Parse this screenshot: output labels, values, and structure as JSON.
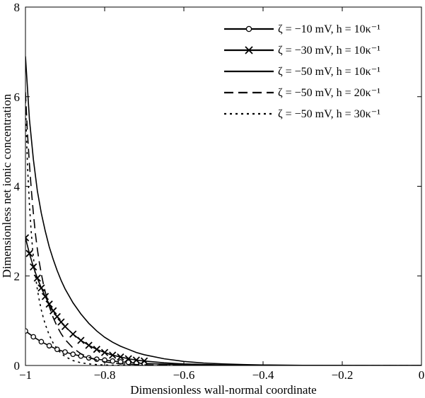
{
  "chart_data": {
    "type": "line",
    "xlabel": "Dimensionless wall-normal coordinate",
    "ylabel": "Dimensionless net ionic concentration",
    "xlim": [
      -1,
      0
    ],
    "ylim": [
      0,
      8
    ],
    "xticks": [
      -1,
      -0.8,
      -0.6,
      -0.4,
      -0.2,
      0
    ],
    "xtick_labels": [
      "−1",
      "−0.8",
      "−0.6",
      "−0.4",
      "−0.2",
      "0"
    ],
    "yticks": [
      0,
      2,
      4,
      6,
      8
    ],
    "ytick_labels": [
      "0",
      "2",
      "4",
      "6",
      "8"
    ],
    "grid": false,
    "legend_position": "top-right",
    "series": [
      {
        "name": "ζ = −10 mV, h = 10κ⁻¹",
        "style": "solid",
        "marker": "circle",
        "color": "#000000",
        "x": [
          -1.0,
          -0.98,
          -0.96,
          -0.94,
          -0.92,
          -0.9,
          -0.88,
          -0.86,
          -0.84,
          -0.82,
          -0.8,
          -0.78,
          -0.76,
          -0.74,
          -0.72,
          -0.7,
          -0.65,
          -0.6,
          -0.5,
          -0.4,
          -0.3,
          -0.2,
          -0.1,
          0.0
        ],
        "y": [
          0.77,
          0.64,
          0.53,
          0.44,
          0.36,
          0.3,
          0.25,
          0.21,
          0.17,
          0.14,
          0.12,
          0.1,
          0.08,
          0.07,
          0.055,
          0.045,
          0.03,
          0.02,
          0.008,
          0.003,
          0.001,
          0.0,
          0.0,
          0.0
        ]
      },
      {
        "name": "ζ = −30 mV, h = 10κ⁻¹",
        "style": "solid",
        "marker": "x",
        "color": "#000000",
        "x": [
          -1.0,
          -0.99,
          -0.98,
          -0.97,
          -0.96,
          -0.95,
          -0.94,
          -0.93,
          -0.92,
          -0.91,
          -0.9,
          -0.88,
          -0.86,
          -0.84,
          -0.82,
          -0.8,
          -0.78,
          -0.76,
          -0.74,
          -0.72,
          -0.7,
          -0.65,
          -0.6,
          -0.5,
          -0.4,
          -0.3,
          -0.2,
          -0.1,
          0.0
        ],
        "y": [
          2.85,
          2.5,
          2.2,
          1.95,
          1.73,
          1.54,
          1.37,
          1.22,
          1.09,
          0.97,
          0.87,
          0.7,
          0.56,
          0.45,
          0.36,
          0.29,
          0.23,
          0.19,
          0.15,
          0.12,
          0.1,
          0.06,
          0.035,
          0.012,
          0.004,
          0.001,
          0.0,
          0.0,
          0.0
        ]
      },
      {
        "name": "ζ = −50 mV, h = 10κ⁻¹",
        "style": "solid",
        "marker": "none",
        "color": "#000000",
        "x": [
          -1.0,
          -0.99,
          -0.98,
          -0.97,
          -0.96,
          -0.95,
          -0.94,
          -0.93,
          -0.92,
          -0.91,
          -0.9,
          -0.88,
          -0.86,
          -0.84,
          -0.82,
          -0.8,
          -0.78,
          -0.76,
          -0.74,
          -0.72,
          -0.7,
          -0.65,
          -0.6,
          -0.55,
          -0.5,
          -0.45,
          -0.4,
          -0.3,
          -0.2,
          -0.1,
          0.0
        ],
        "y": [
          6.9,
          5.5,
          4.6,
          3.9,
          3.4,
          3.0,
          2.65,
          2.37,
          2.12,
          1.9,
          1.71,
          1.4,
          1.15,
          0.94,
          0.77,
          0.63,
          0.52,
          0.43,
          0.36,
          0.29,
          0.24,
          0.15,
          0.09,
          0.055,
          0.035,
          0.02,
          0.012,
          0.004,
          0.001,
          0.0,
          0.0
        ]
      },
      {
        "name": "ζ = −50 mV, h = 20κ⁻¹",
        "style": "dashed",
        "marker": "none",
        "color": "#000000",
        "x": [
          -1.0,
          -0.995,
          -0.99,
          -0.985,
          -0.98,
          -0.975,
          -0.97,
          -0.965,
          -0.96,
          -0.955,
          -0.95,
          -0.94,
          -0.93,
          -0.92,
          -0.91,
          -0.9,
          -0.88,
          -0.86,
          -0.84,
          -0.82,
          -0.8,
          -0.76,
          -0.72,
          -0.68,
          -0.6,
          -0.5,
          -0.4,
          -0.3,
          -0.2,
          -0.1,
          0.0
        ],
        "y": [
          6.1,
          5.2,
          4.5,
          3.9,
          3.4,
          2.95,
          2.6,
          2.3,
          2.05,
          1.83,
          1.64,
          1.32,
          1.07,
          0.87,
          0.71,
          0.58,
          0.39,
          0.26,
          0.18,
          0.12,
          0.08,
          0.04,
          0.02,
          0.01,
          0.003,
          0.001,
          0.0,
          0.0,
          0.0,
          0.0,
          0.0
        ]
      },
      {
        "name": "ζ = −50 mV, h = 30κ⁻¹",
        "style": "dotted",
        "marker": "none",
        "color": "#000000",
        "x": [
          -1.0,
          -0.997,
          -0.994,
          -0.99,
          -0.986,
          -0.982,
          -0.978,
          -0.974,
          -0.97,
          -0.965,
          -0.96,
          -0.955,
          -0.95,
          -0.94,
          -0.93,
          -0.92,
          -0.91,
          -0.9,
          -0.88,
          -0.86,
          -0.84,
          -0.82,
          -0.8,
          -0.76,
          -0.72,
          -0.6,
          -0.5,
          -0.4,
          -0.3,
          -0.2,
          -0.1,
          0.0
        ],
        "y": [
          5.9,
          5.0,
          4.3,
          3.6,
          3.05,
          2.6,
          2.25,
          1.95,
          1.7,
          1.45,
          1.24,
          1.07,
          0.92,
          0.68,
          0.5,
          0.37,
          0.27,
          0.2,
          0.11,
          0.06,
          0.035,
          0.02,
          0.011,
          0.004,
          0.001,
          0.0,
          0.0,
          0.0,
          0.0,
          0.0,
          0.0,
          0.0
        ]
      }
    ]
  }
}
